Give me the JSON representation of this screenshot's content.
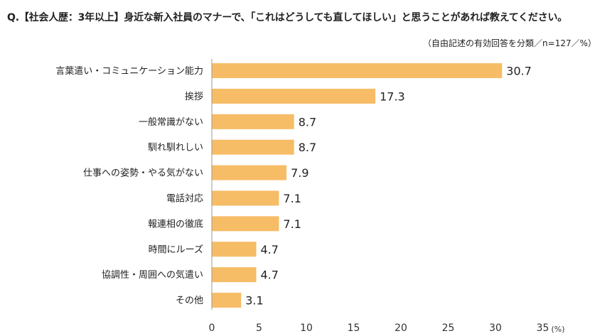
{
  "header": {
    "question": "Q.【社会人歴：3年以上】身近な新入社員のマナーで、「これはどうしても直してほしい」と思うことがあれば教えてください。",
    "note": "（自由記述の有効回答を分類／n=127／%）"
  },
  "chart_data": {
    "type": "bar",
    "orientation": "horizontal",
    "title": "",
    "categories": [
      "言葉遣い・コミュニケーション能力",
      "挨拶",
      "一般常識がない",
      "馴れ馴れしい",
      "仕事への姿勢・やる気がない",
      "電話対応",
      "報連相の徹底",
      "時間にルーズ",
      "協調性・周囲への気遣い",
      "その他"
    ],
    "values": [
      30.7,
      17.3,
      8.7,
      8.7,
      7.9,
      7.1,
      7.1,
      4.7,
      4.7,
      3.1
    ],
    "value_labels": [
      "30.7",
      "17.3",
      "8.7",
      "8.7",
      "7.9",
      "7.1",
      "7.1",
      "4.7",
      "4.7",
      "3.1"
    ],
    "xlim": [
      0,
      35
    ],
    "xticks": [
      0,
      5,
      10,
      15,
      20,
      25,
      30,
      35
    ],
    "xunit": "(%)",
    "grid": false,
    "colors": {
      "bar": "#F6BC66",
      "axis": "#999999"
    }
  }
}
